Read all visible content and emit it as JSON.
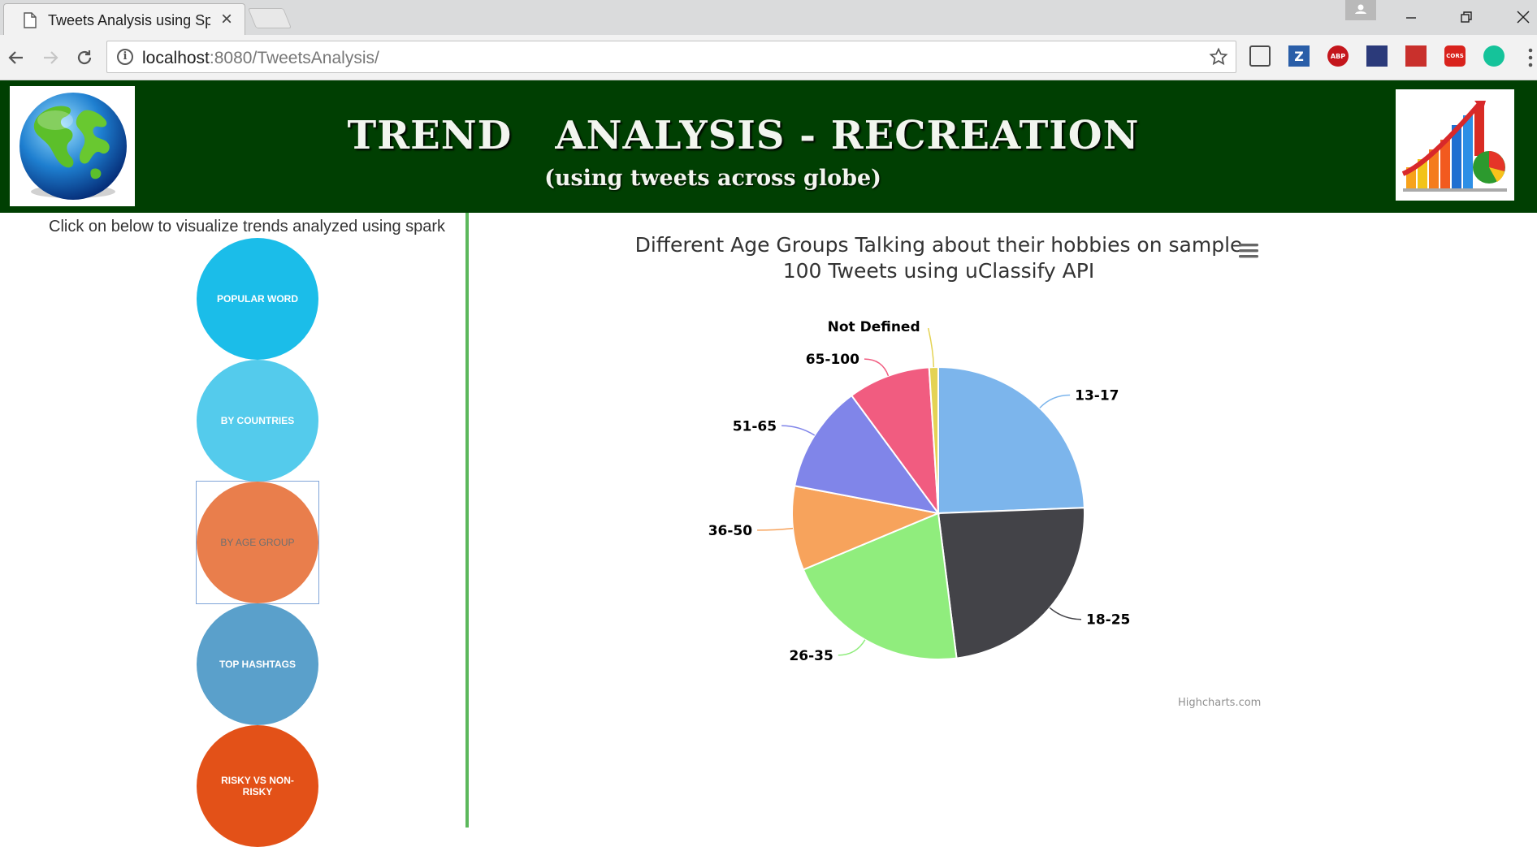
{
  "browser": {
    "tab_title": "Tweets Analysis using Sp",
    "url_host": "localhost",
    "url_rest": ":8080/TweetsAnalysis/"
  },
  "extensions": [
    {
      "name": "pocket-ext-icon",
      "label": "",
      "color": "#6b6b6b"
    },
    {
      "name": "zotero-ext-icon",
      "label": "Z",
      "color": "#2a5ea8"
    },
    {
      "name": "adblock-ext-icon",
      "label": "ABP",
      "color": "#c4161c"
    },
    {
      "name": "night-ext-icon",
      "label": "",
      "color": "#2b3a7a"
    },
    {
      "name": "bookmark-ext-icon",
      "label": "",
      "color": "#c9302c"
    },
    {
      "name": "cors-ext-icon",
      "label": "CORS",
      "color": "#d9231d"
    },
    {
      "name": "grammarly-ext-icon",
      "label": "",
      "color": "#15c39a"
    }
  ],
  "header": {
    "title": "TREND   ANALYSIS - RECREATION",
    "subtitle": "(using tweets across globe)"
  },
  "sidebar": {
    "intro": "Click on below to visualize trends analyzed using spark",
    "buttons": [
      {
        "label": "POPULAR WORD",
        "color": "#1bbde9"
      },
      {
        "label": "BY COUNTRIES",
        "color": "#54cbec"
      },
      {
        "label": "BY AGE GROUP",
        "color": "#e97e4c",
        "text_color": "#6f6f6f"
      },
      {
        "label": "TOP HASHTAGS",
        "color": "#5aa0cb"
      },
      {
        "label": "RISKY VS NON-RISKY",
        "color": "#e35118"
      }
    ]
  },
  "chart_data": {
    "type": "pie",
    "title": "Different Age Groups Talking about their hobbies on sample 100 Tweets using uClassify API",
    "credits": "Highcharts.com",
    "slices": [
      {
        "label": "13-17",
        "value": 24.4,
        "color": "#7cb5ec"
      },
      {
        "label": "18-25",
        "value": 23.6,
        "color": "#434348"
      },
      {
        "label": "26-35",
        "value": 20.7,
        "color": "#90ed7d"
      },
      {
        "label": "36-50",
        "value": 9.3,
        "color": "#f7a35c"
      },
      {
        "label": "51-65",
        "value": 11.9,
        "color": "#8085e9"
      },
      {
        "label": "65-100",
        "value": 9.1,
        "color": "#f15c80"
      },
      {
        "label": "Not Defined",
        "value": 1.0,
        "color": "#e4d354"
      }
    ]
  }
}
